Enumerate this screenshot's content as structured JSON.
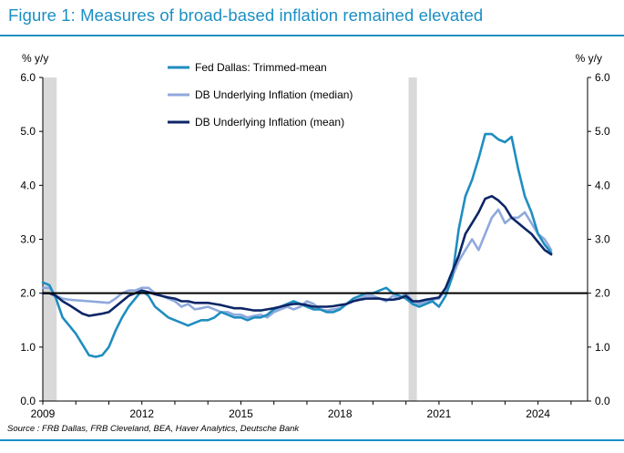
{
  "header": {
    "title": "Figure 1: Measures of broad-based inflation remained elevated",
    "source": "Source : FRB Dallas, FRB Cleveland, BEA, Haver Analytics, Deutsche Bank"
  },
  "chart_data": {
    "type": "line",
    "title": "Figure 1: Measures of broad-based inflation remained elevated",
    "ylabel_left": "% y/y",
    "ylabel_right": "% y/y",
    "ylim": [
      0,
      6
    ],
    "xlim": [
      2009.0,
      2025.5
    ],
    "x_tick_labels": [
      "2009",
      "2012",
      "2015",
      "2018",
      "2021",
      "2024"
    ],
    "x_tick_values": [
      2009,
      2012,
      2015,
      2018,
      2021,
      2024
    ],
    "y_tick_values": [
      0,
      1,
      2,
      3,
      4,
      5,
      6
    ],
    "y_tick_labels": [
      "0.0",
      "1.0",
      "2.0",
      "3.0",
      "4.0",
      "5.0",
      "6.0"
    ],
    "reference_line": 2.0,
    "legend_placement": "top-center",
    "recession_shading": [
      [
        2009.0,
        2009.42
      ],
      [
        2020.08,
        2020.33
      ]
    ],
    "colors": {
      "trimmed": "#1f8dc0",
      "median": "#8fa9dc",
      "mean": "#0c2566",
      "recession": "#d9d9d9",
      "accent": "#1a8fc4"
    },
    "series": [
      {
        "name": "Fed Dallas: Trimmed-mean",
        "color": "#1f8dc0",
        "x": [
          2009.0,
          2009.2,
          2009.4,
          2009.6,
          2009.8,
          2010.0,
          2010.2,
          2010.4,
          2010.6,
          2010.8,
          2011.0,
          2011.2,
          2011.4,
          2011.6,
          2011.8,
          2012.0,
          2012.2,
          2012.4,
          2012.6,
          2012.8,
          2013.0,
          2013.2,
          2013.4,
          2013.6,
          2013.8,
          2014.0,
          2014.2,
          2014.4,
          2014.6,
          2014.8,
          2015.0,
          2015.2,
          2015.4,
          2015.6,
          2015.8,
          2016.0,
          2016.2,
          2016.4,
          2016.6,
          2016.8,
          2017.0,
          2017.2,
          2017.4,
          2017.6,
          2017.8,
          2018.0,
          2018.2,
          2018.4,
          2018.6,
          2018.8,
          2019.0,
          2019.2,
          2019.4,
          2019.6,
          2019.8,
          2020.0,
          2020.2,
          2020.4,
          2020.6,
          2020.8,
          2021.0,
          2021.2,
          2021.4,
          2021.6,
          2021.8,
          2022.0,
          2022.2,
          2022.4,
          2022.6,
          2022.8,
          2023.0,
          2023.2,
          2023.4,
          2023.6,
          2023.8,
          2024.0,
          2024.2,
          2024.4
        ],
        "values": [
          2.2,
          2.15,
          1.9,
          1.55,
          1.4,
          1.25,
          1.05,
          0.85,
          0.82,
          0.85,
          1.0,
          1.3,
          1.55,
          1.75,
          1.9,
          2.05,
          1.95,
          1.75,
          1.65,
          1.55,
          1.5,
          1.45,
          1.4,
          1.45,
          1.5,
          1.5,
          1.55,
          1.65,
          1.6,
          1.55,
          1.55,
          1.5,
          1.55,
          1.55,
          1.6,
          1.7,
          1.75,
          1.8,
          1.85,
          1.8,
          1.75,
          1.7,
          1.7,
          1.65,
          1.65,
          1.7,
          1.8,
          1.9,
          1.95,
          2.0,
          2.0,
          2.05,
          2.1,
          2.0,
          1.95,
          1.9,
          1.8,
          1.75,
          1.8,
          1.85,
          1.75,
          1.95,
          2.3,
          3.2,
          3.8,
          4.1,
          4.5,
          4.95,
          4.95,
          4.85,
          4.8,
          4.9,
          4.3,
          3.8,
          3.5,
          3.1,
          2.9,
          2.75
        ]
      },
      {
        "name": "DB Underlying Inflation (median)",
        "color": "#8fa9dc",
        "x": [
          2009.0,
          2009.2,
          2009.4,
          2009.6,
          2009.8,
          2010.0,
          2010.2,
          2010.4,
          2010.6,
          2010.8,
          2011.0,
          2011.2,
          2011.4,
          2011.6,
          2011.8,
          2012.0,
          2012.2,
          2012.4,
          2012.6,
          2012.8,
          2013.0,
          2013.2,
          2013.4,
          2013.6,
          2013.8,
          2014.0,
          2014.2,
          2014.4,
          2014.6,
          2014.8,
          2015.0,
          2015.2,
          2015.4,
          2015.6,
          2015.8,
          2016.0,
          2016.2,
          2016.4,
          2016.6,
          2016.8,
          2017.0,
          2017.2,
          2017.4,
          2017.6,
          2017.8,
          2018.0,
          2018.2,
          2018.4,
          2018.6,
          2018.8,
          2019.0,
          2019.2,
          2019.4,
          2019.6,
          2019.8,
          2020.0,
          2020.2,
          2020.4,
          2020.6,
          2020.8,
          2021.0,
          2021.2,
          2021.4,
          2021.6,
          2021.8,
          2022.0,
          2022.2,
          2022.4,
          2022.6,
          2022.8,
          2023.0,
          2023.2,
          2023.4,
          2023.6,
          2023.8,
          2024.0,
          2024.2,
          2024.4
        ],
        "values": [
          2.1,
          2.1,
          1.95,
          1.9,
          1.88,
          1.87,
          1.86,
          1.85,
          1.84,
          1.83,
          1.82,
          1.9,
          2.0,
          2.05,
          2.05,
          2.1,
          2.1,
          2.0,
          1.95,
          1.9,
          1.85,
          1.75,
          1.8,
          1.7,
          1.72,
          1.75,
          1.7,
          1.65,
          1.65,
          1.6,
          1.6,
          1.55,
          1.58,
          1.6,
          1.55,
          1.65,
          1.7,
          1.75,
          1.7,
          1.75,
          1.85,
          1.8,
          1.7,
          1.68,
          1.7,
          1.72,
          1.8,
          1.85,
          1.9,
          1.95,
          1.95,
          1.9,
          1.85,
          1.95,
          1.9,
          2.0,
          1.85,
          1.8,
          1.85,
          1.88,
          1.9,
          2.05,
          2.3,
          2.6,
          2.8,
          3.0,
          2.8,
          3.1,
          3.4,
          3.55,
          3.3,
          3.4,
          3.4,
          3.5,
          3.3,
          3.1,
          3.0,
          2.8
        ]
      },
      {
        "name": "DB Underlying Inflation (mean)",
        "color": "#0c2566",
        "x": [
          2009.0,
          2009.2,
          2009.4,
          2009.6,
          2009.8,
          2010.0,
          2010.2,
          2010.4,
          2010.6,
          2010.8,
          2011.0,
          2011.2,
          2011.4,
          2011.6,
          2011.8,
          2012.0,
          2012.2,
          2012.4,
          2012.6,
          2012.8,
          2013.0,
          2013.2,
          2013.4,
          2013.6,
          2013.8,
          2014.0,
          2014.2,
          2014.4,
          2014.6,
          2014.8,
          2015.0,
          2015.2,
          2015.4,
          2015.6,
          2015.8,
          2016.0,
          2016.2,
          2016.4,
          2016.6,
          2016.8,
          2017.0,
          2017.2,
          2017.4,
          2017.6,
          2017.8,
          2018.0,
          2018.2,
          2018.4,
          2018.6,
          2018.8,
          2019.0,
          2019.2,
          2019.4,
          2019.6,
          2019.8,
          2020.0,
          2020.2,
          2020.4,
          2020.6,
          2020.8,
          2021.0,
          2021.2,
          2021.4,
          2021.6,
          2021.8,
          2022.0,
          2022.2,
          2022.4,
          2022.6,
          2022.8,
          2023.0,
          2023.2,
          2023.4,
          2023.6,
          2023.8,
          2024.0,
          2024.2,
          2024.4
        ],
        "values": [
          2.0,
          2.0,
          1.95,
          1.85,
          1.78,
          1.7,
          1.62,
          1.58,
          1.6,
          1.62,
          1.65,
          1.75,
          1.85,
          1.95,
          2.0,
          2.05,
          2.02,
          1.98,
          1.95,
          1.92,
          1.9,
          1.85,
          1.85,
          1.82,
          1.82,
          1.82,
          1.8,
          1.78,
          1.75,
          1.72,
          1.72,
          1.7,
          1.68,
          1.68,
          1.7,
          1.72,
          1.75,
          1.78,
          1.8,
          1.8,
          1.78,
          1.75,
          1.75,
          1.75,
          1.76,
          1.78,
          1.8,
          1.85,
          1.88,
          1.9,
          1.9,
          1.9,
          1.88,
          1.88,
          1.9,
          1.95,
          1.85,
          1.85,
          1.88,
          1.9,
          1.92,
          2.1,
          2.4,
          2.7,
          3.1,
          3.3,
          3.5,
          3.75,
          3.8,
          3.72,
          3.6,
          3.4,
          3.3,
          3.2,
          3.1,
          2.95,
          2.8,
          2.72
        ]
      }
    ]
  }
}
